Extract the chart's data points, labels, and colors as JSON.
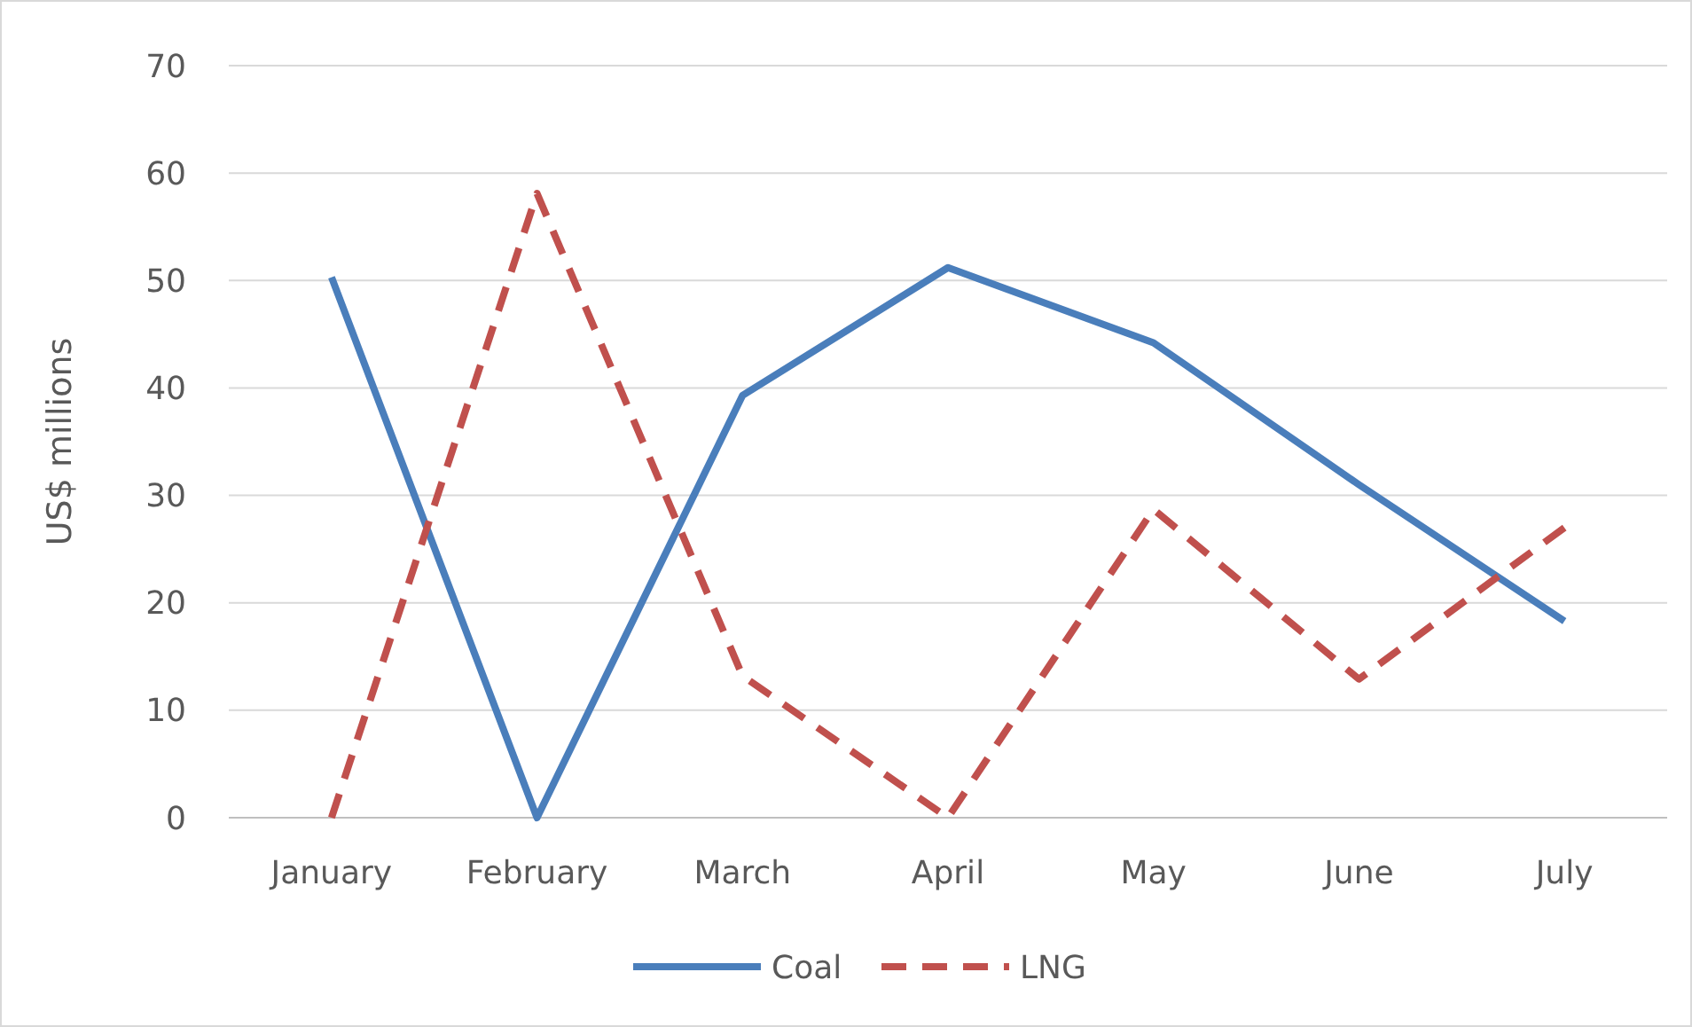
{
  "chart_data": {
    "type": "line",
    "ylabel": "US$ millions",
    "categories": [
      "January",
      "February",
      "March",
      "April",
      "May",
      "June",
      "July"
    ],
    "series": [
      {
        "name": "Coal",
        "color": "#4a7ebb",
        "values": [
          50.3,
          0,
          39.3,
          51.2,
          44.2,
          31,
          18.3
        ],
        "line_style": "solid"
      },
      {
        "name": "LNG",
        "color": "#c0504d",
        "values": [
          0,
          58.1,
          13.2,
          0,
          28.7,
          12.9,
          27
        ],
        "line_style": "dashed"
      }
    ],
    "ylim": [
      0,
      70
    ],
    "yticks": [
      0,
      10,
      20,
      30,
      40,
      50,
      60,
      70
    ],
    "grid": "y",
    "legend": "bottom"
  }
}
